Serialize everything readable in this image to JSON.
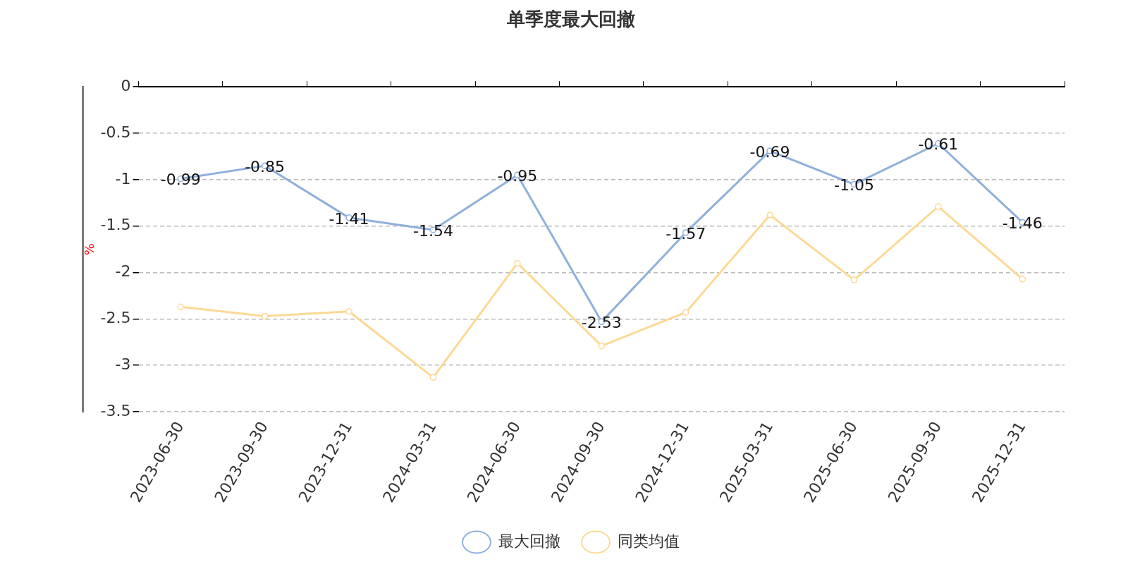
{
  "chart_data": {
    "type": "line",
    "title": "单季度最大回撤",
    "ylabel": "%",
    "categories": [
      "2023-06-30",
      "2023-09-30",
      "2023-12-31",
      "2024-03-31",
      "2024-06-30",
      "2024-09-30",
      "2024-12-31",
      "2025-03-31",
      "2025-06-30",
      "2025-09-30",
      "2025-12-31"
    ],
    "series": [
      {
        "name": "最大回撤",
        "color": "#8eb0dc",
        "values": [
          -0.99,
          -0.85,
          -1.41,
          -1.54,
          -0.95,
          -2.53,
          -1.57,
          -0.69,
          -1.05,
          -0.61,
          -1.46
        ],
        "value_labels": [
          "-0.99",
          "-0.85",
          "-1.41",
          "-1.54",
          "-0.95",
          "-2.53",
          "-1.57",
          "-0.69",
          "-1.05",
          "-0.61",
          "-1.46"
        ]
      },
      {
        "name": "同类均值",
        "color": "#fcd994",
        "values": [
          -2.37,
          -2.47,
          -2.42,
          -3.13,
          -1.9,
          -2.79,
          -2.43,
          -1.38,
          -2.08,
          -1.29,
          -2.07
        ]
      }
    ],
    "ylim": [
      -3.5,
      0
    ],
    "yticks": [
      0,
      -0.5,
      -1,
      -1.5,
      -2,
      -2.5,
      -3,
      -3.5
    ],
    "grid": "y",
    "legend": "bottom",
    "marker": "circle",
    "line_style": "solid"
  }
}
